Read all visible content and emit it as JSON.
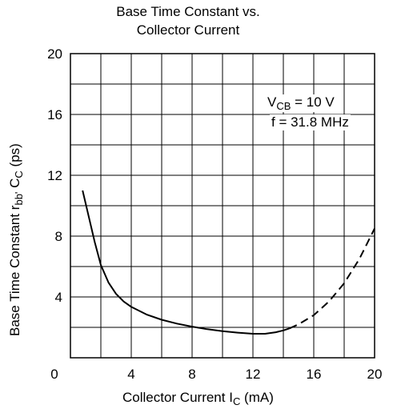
{
  "chart_data": {
    "type": "line",
    "title_line1": "Base Time Constant vs.",
    "title_line2": "Collector Current",
    "xlabel": {
      "main": "Collector Current  I",
      "sub": "C",
      "unit": "  (mA)"
    },
    "ylabel": {
      "part1": "Base Time Constant  r",
      "sub1": "bb'",
      "part2": " C",
      "sub2": "C",
      "part3": "  (ps)"
    },
    "xlim": [
      0,
      20
    ],
    "ylim": [
      0,
      20
    ],
    "x_ticks": [
      "0",
      "4",
      "8",
      "12",
      "16",
      "20"
    ],
    "y_ticks": [
      "4",
      "8",
      "12",
      "16",
      "20"
    ],
    "grid": true,
    "annotation": {
      "line1_main": "V",
      "line1_sub": "CB",
      "line1_rest": " = 10 V",
      "line2": "f = 31.8 MHz"
    },
    "series": [
      {
        "style": "solid",
        "x": [
          0.8,
          1.2,
          1.6,
          2.0,
          2.5,
          3.0,
          3.5,
          4.0,
          5.0,
          6.0,
          7.0,
          8.0,
          9.0,
          10.0,
          11.0,
          12.0,
          12.8,
          13.5,
          14.0,
          14.4
        ],
        "y": [
          11.0,
          9.3,
          7.6,
          6.1,
          4.95,
          4.2,
          3.7,
          3.35,
          2.85,
          2.5,
          2.25,
          2.05,
          1.88,
          1.75,
          1.65,
          1.58,
          1.58,
          1.68,
          1.8,
          1.93
        ]
      },
      {
        "style": "dashed",
        "x": [
          14.4,
          15.0,
          16.0,
          17.0,
          18.0,
          19.0,
          20.0
        ],
        "y": [
          1.93,
          2.2,
          2.8,
          3.7,
          4.9,
          6.5,
          8.5
        ]
      }
    ]
  }
}
